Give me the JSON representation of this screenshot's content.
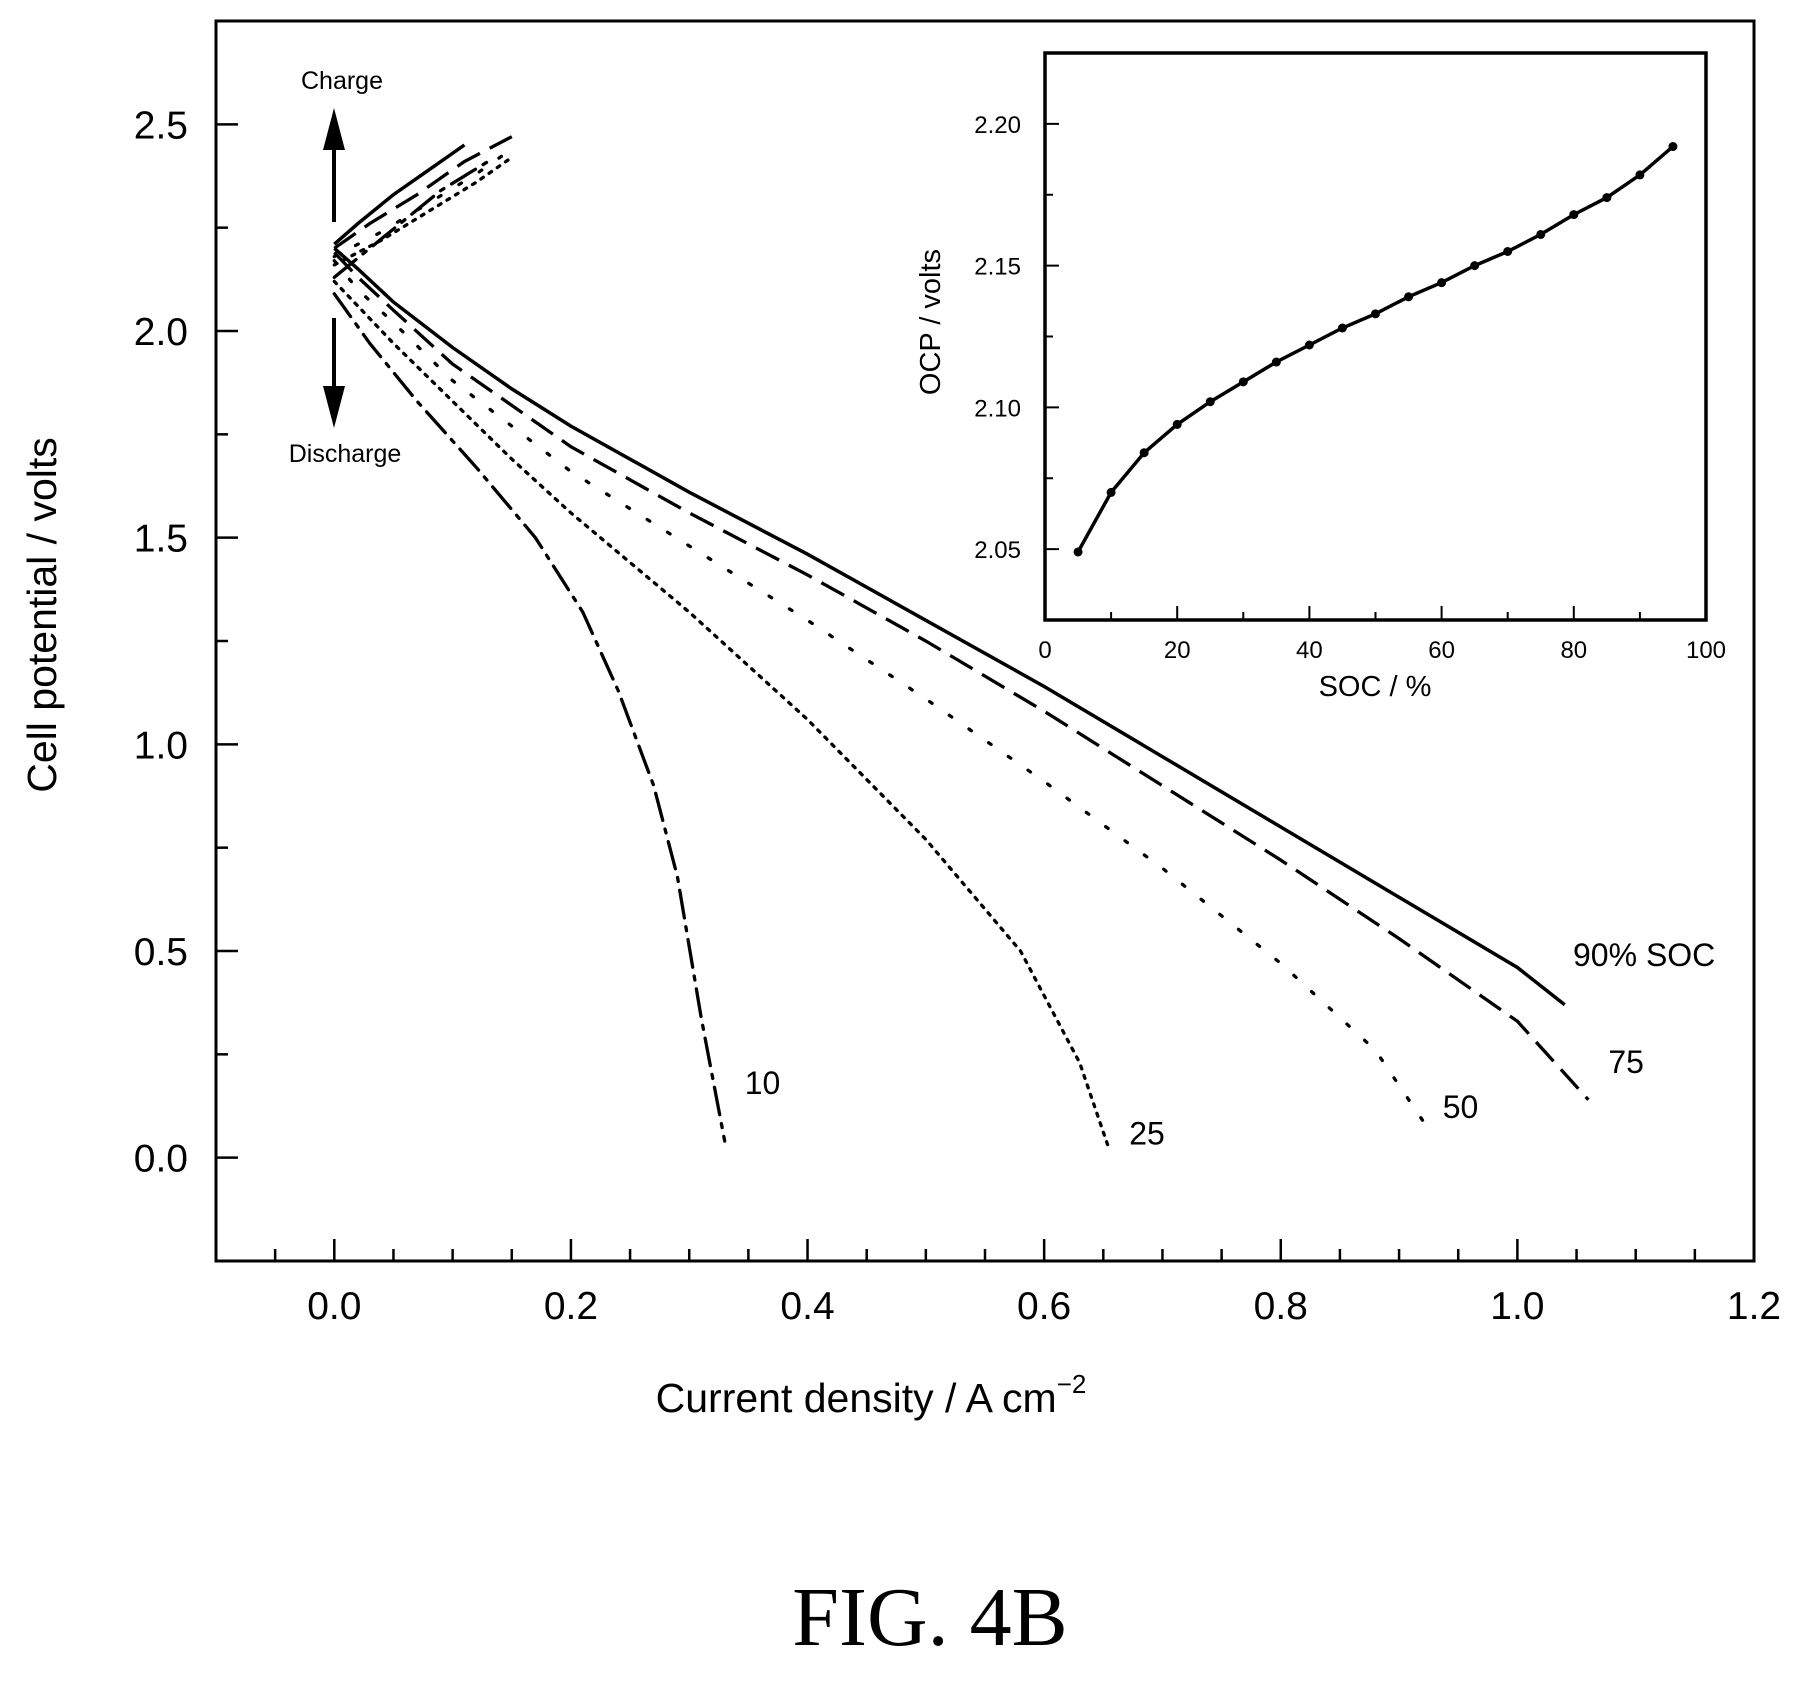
{
  "figure": {
    "caption": "FIG. 4B"
  },
  "chart_data": [
    {
      "type": "line",
      "xlabel": "Current density / A cm",
      "xlabel_superscript": "−2",
      "ylabel": "Cell potential / volts",
      "xlim": [
        -0.1,
        1.2
      ],
      "ylim": [
        -0.25,
        2.75
      ],
      "xticks": [
        0.0,
        0.2,
        0.4,
        0.6,
        0.8,
        1.0,
        1.2
      ],
      "xtick_labels": [
        "0.0",
        "0.2",
        "0.4",
        "0.6",
        "0.8",
        "1.0",
        "1.2"
      ],
      "yticks": [
        0.0,
        0.5,
        1.0,
        1.5,
        2.0,
        2.5
      ],
      "ytick_labels": [
        "0.0",
        "0.5",
        "1.0",
        "1.5",
        "2.0",
        "2.5"
      ],
      "grid": false,
      "annotations": {
        "charge": "Charge",
        "discharge": "Discharge"
      },
      "series": [
        {
          "name": "90% SOC",
          "style": "solid",
          "discharge": [
            [
              0.0,
              2.2
            ],
            [
              0.02,
              2.15
            ],
            [
              0.05,
              2.07
            ],
            [
              0.1,
              1.96
            ],
            [
              0.15,
              1.86
            ],
            [
              0.2,
              1.77
            ],
            [
              0.3,
              1.61
            ],
            [
              0.4,
              1.46
            ],
            [
              0.5,
              1.3
            ],
            [
              0.6,
              1.14
            ],
            [
              0.7,
              0.97
            ],
            [
              0.8,
              0.8
            ],
            [
              0.9,
              0.63
            ],
            [
              1.0,
              0.46
            ],
            [
              1.04,
              0.37
            ]
          ],
          "charge": [
            [
              0.0,
              2.21
            ],
            [
              0.02,
              2.26
            ],
            [
              0.05,
              2.33
            ],
            [
              0.08,
              2.39
            ],
            [
              0.11,
              2.45
            ]
          ]
        },
        {
          "name": "75",
          "style": "dashed",
          "discharge": [
            [
              0.0,
              2.19
            ],
            [
              0.02,
              2.13
            ],
            [
              0.05,
              2.05
            ],
            [
              0.1,
              1.92
            ],
            [
              0.15,
              1.82
            ],
            [
              0.2,
              1.72
            ],
            [
              0.3,
              1.56
            ],
            [
              0.4,
              1.41
            ],
            [
              0.5,
              1.25
            ],
            [
              0.6,
              1.08
            ],
            [
              0.7,
              0.9
            ],
            [
              0.8,
              0.72
            ],
            [
              0.9,
              0.53
            ],
            [
              1.0,
              0.33
            ],
            [
              1.06,
              0.14
            ]
          ],
          "charge": [
            [
              0.0,
              2.2
            ],
            [
              0.03,
              2.26
            ],
            [
              0.07,
              2.33
            ],
            [
              0.11,
              2.41
            ],
            [
              0.15,
              2.47
            ]
          ]
        },
        {
          "name": "50",
          "style": "sparse-dotted",
          "discharge": [
            [
              0.0,
              2.17
            ],
            [
              0.02,
              2.1
            ],
            [
              0.05,
              2.02
            ],
            [
              0.1,
              1.88
            ],
            [
              0.15,
              1.77
            ],
            [
              0.2,
              1.66
            ],
            [
              0.3,
              1.48
            ],
            [
              0.4,
              1.3
            ],
            [
              0.5,
              1.11
            ],
            [
              0.6,
              0.91
            ],
            [
              0.7,
              0.7
            ],
            [
              0.8,
              0.47
            ],
            [
              0.88,
              0.26
            ],
            [
              0.92,
              0.09
            ]
          ],
          "charge": [
            [
              0.0,
              2.18
            ],
            [
              0.04,
              2.24
            ],
            [
              0.08,
              2.31
            ],
            [
              0.12,
              2.38
            ],
            [
              0.15,
              2.44
            ]
          ]
        },
        {
          "name": "25",
          "style": "dotted",
          "discharge": [
            [
              0.0,
              2.12
            ],
            [
              0.02,
              2.06
            ],
            [
              0.05,
              1.97
            ],
            [
              0.1,
              1.83
            ],
            [
              0.15,
              1.69
            ],
            [
              0.2,
              1.56
            ],
            [
              0.3,
              1.32
            ],
            [
              0.4,
              1.06
            ],
            [
              0.5,
              0.77
            ],
            [
              0.58,
              0.5
            ],
            [
              0.63,
              0.23
            ],
            [
              0.655,
              0.02
            ]
          ],
          "charge": [
            [
              0.0,
              2.16
            ],
            [
              0.04,
              2.22
            ],
            [
              0.08,
              2.29
            ],
            [
              0.12,
              2.36
            ],
            [
              0.15,
              2.42
            ]
          ]
        },
        {
          "name": "10",
          "style": "dash-dot",
          "discharge": [
            [
              0.0,
              2.09
            ],
            [
              0.03,
              1.97
            ],
            [
              0.07,
              1.83
            ],
            [
              0.12,
              1.67
            ],
            [
              0.17,
              1.5
            ],
            [
              0.21,
              1.32
            ],
            [
              0.24,
              1.13
            ],
            [
              0.27,
              0.9
            ],
            [
              0.29,
              0.68
            ],
            [
              0.31,
              0.34
            ],
            [
              0.33,
              0.04
            ]
          ],
          "charge": [
            [
              0.0,
              2.13
            ],
            [
              0.03,
              2.2
            ],
            [
              0.06,
              2.27
            ],
            [
              0.09,
              2.34
            ],
            [
              0.13,
              2.41
            ]
          ]
        }
      ]
    },
    {
      "type": "line",
      "inset": true,
      "xlabel": "SOC / %",
      "ylabel": "OCP / volts",
      "xlim": [
        0,
        100
      ],
      "ylim": [
        2.025,
        2.225
      ],
      "xticks": [
        0,
        20,
        40,
        60,
        80,
        100
      ],
      "xtick_labels": [
        "0",
        "20",
        "40",
        "60",
        "80",
        "100"
      ],
      "yticks": [
        2.05,
        2.1,
        2.15,
        2.2
      ],
      "ytick_labels": [
        "2.05",
        "2.10",
        "2.15",
        "2.20"
      ],
      "grid": false,
      "x": [
        5,
        10,
        15,
        20,
        25,
        30,
        35,
        40,
        45,
        50,
        55,
        60,
        65,
        70,
        75,
        80,
        85,
        90,
        95
      ],
      "y": [
        2.049,
        2.07,
        2.084,
        2.094,
        2.102,
        2.109,
        2.116,
        2.122,
        2.128,
        2.133,
        2.139,
        2.144,
        2.15,
        2.155,
        2.161,
        2.168,
        2.174,
        2.182,
        2.192
      ]
    }
  ]
}
